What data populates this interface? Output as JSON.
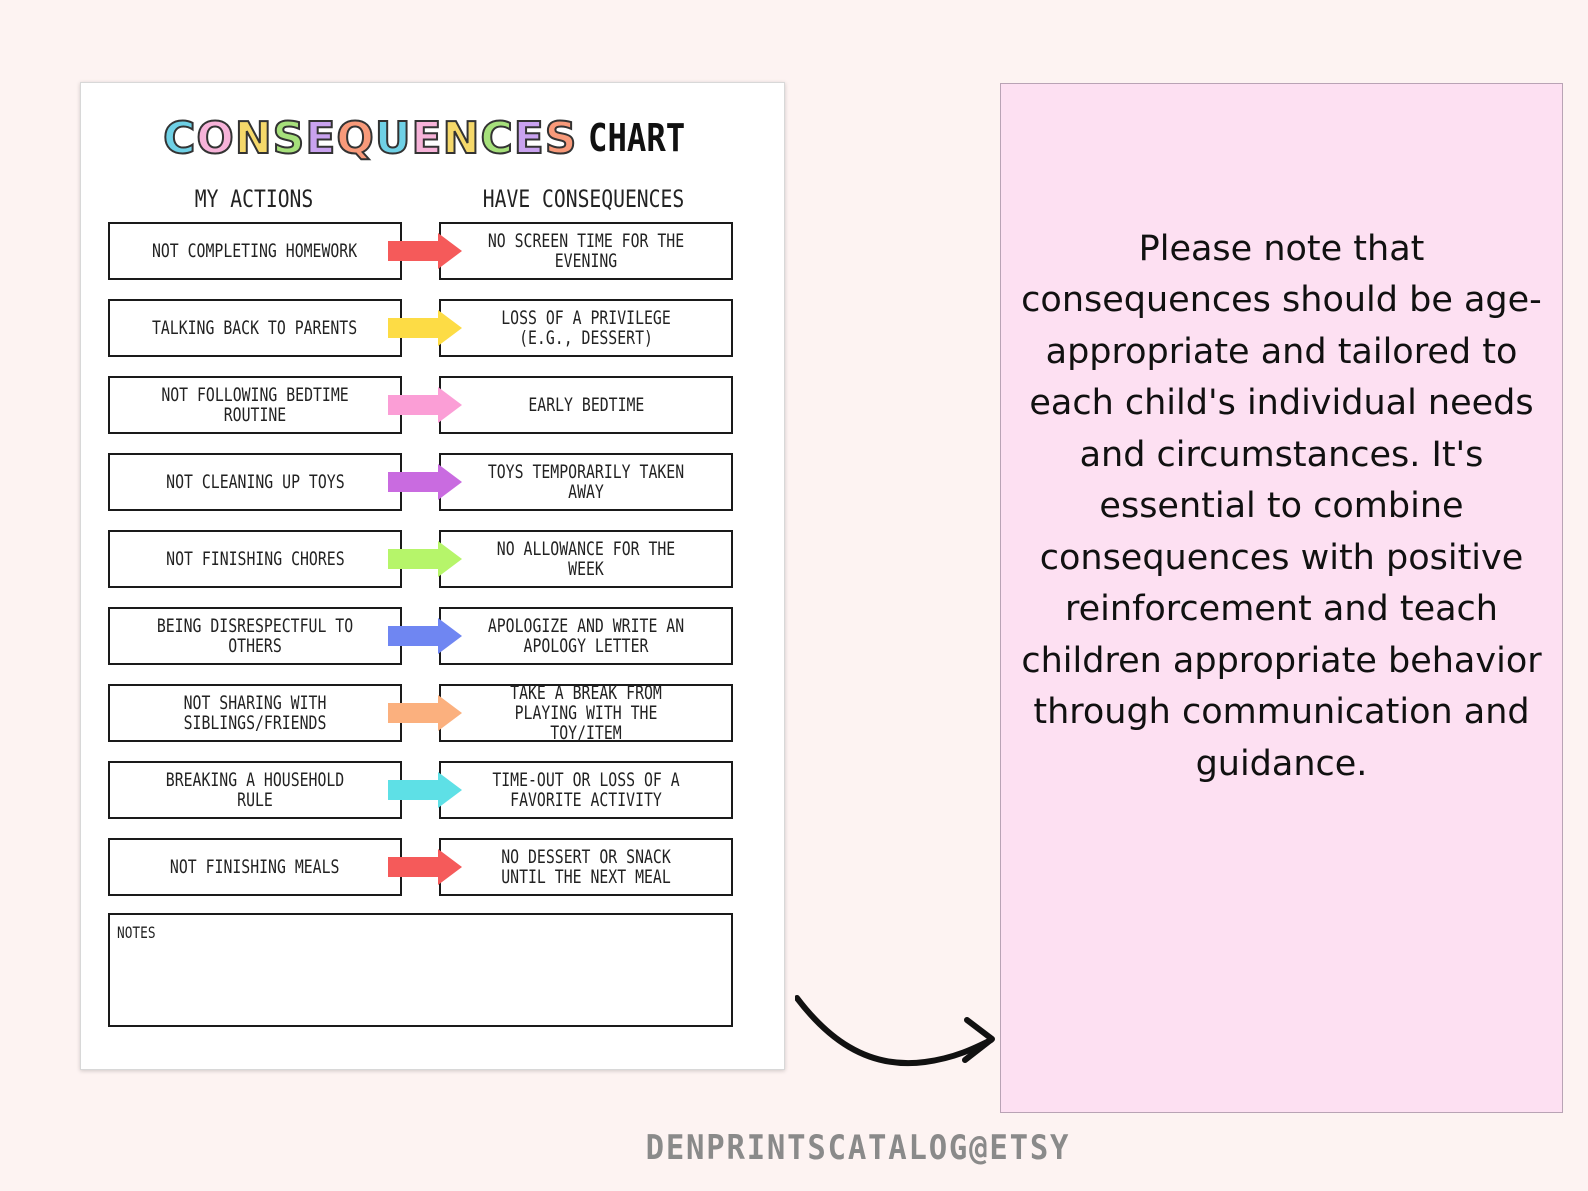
{
  "sheet": {
    "title_colored": "CONSEQUENCES",
    "title_plain": "CHART",
    "col_left": "MY ACTIONS",
    "col_right": "HAVE CONSEQUENCES",
    "rows": [
      {
        "action": "NOT COMPLETING HOMEWORK",
        "consequence": "NO SCREEN TIME FOR THE EVENING",
        "arrow_color": "#f55a5a"
      },
      {
        "action": "TALKING BACK TO PARENTS",
        "consequence": "LOSS OF A PRIVILEGE (E.G., DESSERT)",
        "arrow_color": "#fddc45"
      },
      {
        "action": "NOT FOLLOWING BEDTIME ROUTINE",
        "consequence": "EARLY BEDTIME",
        "arrow_color": "#fb9ed6"
      },
      {
        "action": "NOT CLEANING UP TOYS",
        "consequence": "TOYS TEMPORARILY TAKEN AWAY",
        "arrow_color": "#c96be0"
      },
      {
        "action": "NOT FINISHING CHORES",
        "consequence": "NO ALLOWANCE FOR THE WEEK",
        "arrow_color": "#b6f56a"
      },
      {
        "action": "BEING DISRESPECTFUL TO OTHERS",
        "consequence": "APOLOGIZE AND WRITE AN APOLOGY LETTER",
        "arrow_color": "#6f86f2"
      },
      {
        "action": "NOT SHARING WITH SIBLINGS/FRIENDS",
        "consequence": "TAKE A BREAK FROM PLAYING WITH THE TOY/ITEM",
        "arrow_color": "#fbb07e"
      },
      {
        "action": "BREAKING A HOUSEHOLD RULE",
        "consequence": "TIME-OUT OR LOSS OF A FAVORITE ACTIVITY",
        "arrow_color": "#5ee0e6"
      },
      {
        "action": "NOT FINISHING MEALS",
        "consequence": "NO DESSERT OR SNACK UNTIL THE NEXT MEAL",
        "arrow_color": "#f55a5a"
      }
    ],
    "notes_label": "NOTES"
  },
  "note_panel": {
    "text": "Please note that consequences should be age-appropriate and tailored to each child's individual needs and circumstances. It's essential to combine consequences with positive reinforcement and teach children appropriate behavior through communication and guidance."
  },
  "footer": "DENPRINTSCATALOG@ETSY",
  "colors": {
    "background": "#fdf3f2",
    "panel": "#fde0f2",
    "footer": "#8a8a8a"
  }
}
